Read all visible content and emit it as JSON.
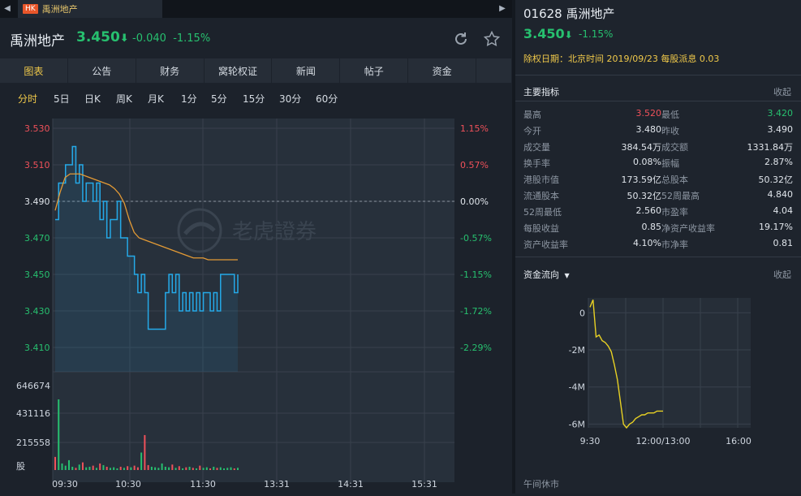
{
  "tabbar": {
    "market_badge": "HK",
    "tab_name": "禹洲地产",
    "scroll_left": "◀",
    "scroll_right": "▶"
  },
  "header": {
    "name": "禹洲地产",
    "price": "3.450",
    "arrow": "⬇",
    "change": "-0.040",
    "change_pct": "-1.15%"
  },
  "nav": [
    "图表",
    "公告",
    "财务",
    "窝轮权证",
    "新闻",
    "帖子",
    "资金"
  ],
  "nav_active": 0,
  "periods": [
    "分时",
    "5日",
    "日K",
    "周K",
    "月K",
    "1分",
    "5分",
    "15分",
    "30分",
    "60分"
  ],
  "period_active": 0,
  "watermark": "老虎證券",
  "chart_data": [
    {
      "type": "line",
      "title": "",
      "y_labels": [
        "3.530",
        "3.510",
        "3.490",
        "3.470",
        "3.450",
        "3.430",
        "3.410"
      ],
      "y_values": [
        3.53,
        3.51,
        3.49,
        3.47,
        3.45,
        3.43,
        3.41
      ],
      "pct_labels": [
        "1.15%",
        "0.57%",
        "0.00%",
        "-0.57%",
        "-1.15%",
        "-1.72%",
        "-2.29%"
      ],
      "prev_close": 3.49,
      "x_ticks": [
        "09:30",
        "10:30",
        "11:30",
        "13:31",
        "14:31",
        "15:31"
      ],
      "price_series": [
        3.48,
        3.5,
        3.5,
        3.51,
        3.51,
        3.52,
        3.5,
        3.51,
        3.49,
        3.5,
        3.5,
        3.49,
        3.5,
        3.48,
        3.49,
        3.47,
        3.48,
        3.48,
        3.49,
        3.47,
        3.47,
        3.46,
        3.46,
        3.45,
        3.44,
        3.45,
        3.44,
        3.42,
        3.42,
        3.42,
        3.42,
        3.42,
        3.44,
        3.45,
        3.44,
        3.45,
        3.43,
        3.44,
        3.43,
        3.44,
        3.43,
        3.44,
        3.43,
        3.44,
        3.44,
        3.43,
        3.44,
        3.43,
        3.45,
        3.45,
        3.45,
        3.45,
        3.44,
        3.45
      ],
      "avg_series": [
        3.485,
        3.495,
        3.503,
        3.505,
        3.505,
        3.505,
        3.504,
        3.503,
        3.502,
        3.501,
        3.5,
        3.499,
        3.497,
        3.494,
        3.489,
        3.48,
        3.473,
        3.47,
        3.469,
        3.468,
        3.467,
        3.466,
        3.465,
        3.464,
        3.463,
        3.462,
        3.461,
        3.46,
        3.459,
        3.459,
        3.459,
        3.458,
        3.458,
        3.458,
        3.458,
        3.458,
        3.458,
        3.458
      ],
      "vol_labels": [
        "646674",
        "431116",
        "215558",
        "股"
      ],
      "vol_max": 862232,
      "volume_series": [
        120000,
        646674,
        60000,
        40000,
        90000,
        30000,
        20000,
        50000,
        70000,
        25000,
        30000,
        40000,
        20000,
        60000,
        45000,
        30000,
        20000,
        25000,
        15000,
        30000,
        20000,
        35000,
        25000,
        40000,
        25000,
        160000,
        320000,
        45000,
        30000,
        25000,
        20000,
        60000,
        30000,
        25000,
        50000,
        20000,
        35000,
        15000,
        25000,
        30000,
        20000,
        15000,
        40000,
        20000,
        25000,
        15000,
        30000,
        20000,
        25000,
        15000,
        20000,
        25000,
        15000,
        20000
      ]
    },
    {
      "type": "line",
      "title": "资金流向",
      "y_labels": [
        "0",
        "-2M",
        "-4M",
        "-6M"
      ],
      "y_values": [
        0,
        -2,
        -4,
        -6
      ],
      "ylim": [
        -6.2,
        0.8
      ],
      "x_ticks": [
        "9:30",
        "12:00/13:00",
        "16:00"
      ],
      "series": [
        0.3,
        0.7,
        -1.3,
        -1.2,
        -1.5,
        -1.6,
        -1.8,
        -2.1,
        -2.8,
        -3.6,
        -4.8,
        -6.0,
        -6.2,
        -6.0,
        -5.9,
        -5.7,
        -5.6,
        -5.5,
        -5.5,
        -5.4,
        -5.4,
        -5.4,
        -5.3,
        -5.3,
        -5.3
      ]
    }
  ],
  "right": {
    "code_name": "01628 禹洲地产",
    "price": "3.450",
    "arrow": "⬇",
    "change_pct": "-1.15%",
    "dividend_note": "除权日期：北京时间 2019/09/23 每股派息 0.03",
    "metrics_title": "主要指标",
    "collapse": "收起",
    "metrics": [
      [
        "最高",
        "3.520",
        "最低",
        "3.420"
      ],
      [
        "今开",
        "3.480",
        "昨收",
        "3.490"
      ],
      [
        "成交量",
        "384.54万",
        "成交额",
        "1331.84万"
      ],
      [
        "换手率",
        "0.08%",
        "振幅",
        "2.87%"
      ],
      [
        "港股市值",
        "173.59亿",
        "总股本",
        "50.32亿"
      ],
      [
        "流通股本",
        "50.32亿",
        "52周最高",
        "4.840"
      ],
      [
        "52周最低",
        "2.560",
        "市盈率",
        "4.04"
      ],
      [
        "每股收益",
        "0.85",
        "净资产收益率",
        "19.17%"
      ],
      [
        "资产收益率",
        "4.10%",
        "市净率",
        "0.81"
      ]
    ],
    "flow_title": "资金流向",
    "flow_collapse": "收起",
    "lunch_status": "午间休市"
  },
  "colors": {
    "up": "#f0515a",
    "down": "#27c06f",
    "price_line": "#25a9e8",
    "avg_line": "#e39a35",
    "flow_line": "#e8d124",
    "accent": "#f0c94a"
  }
}
